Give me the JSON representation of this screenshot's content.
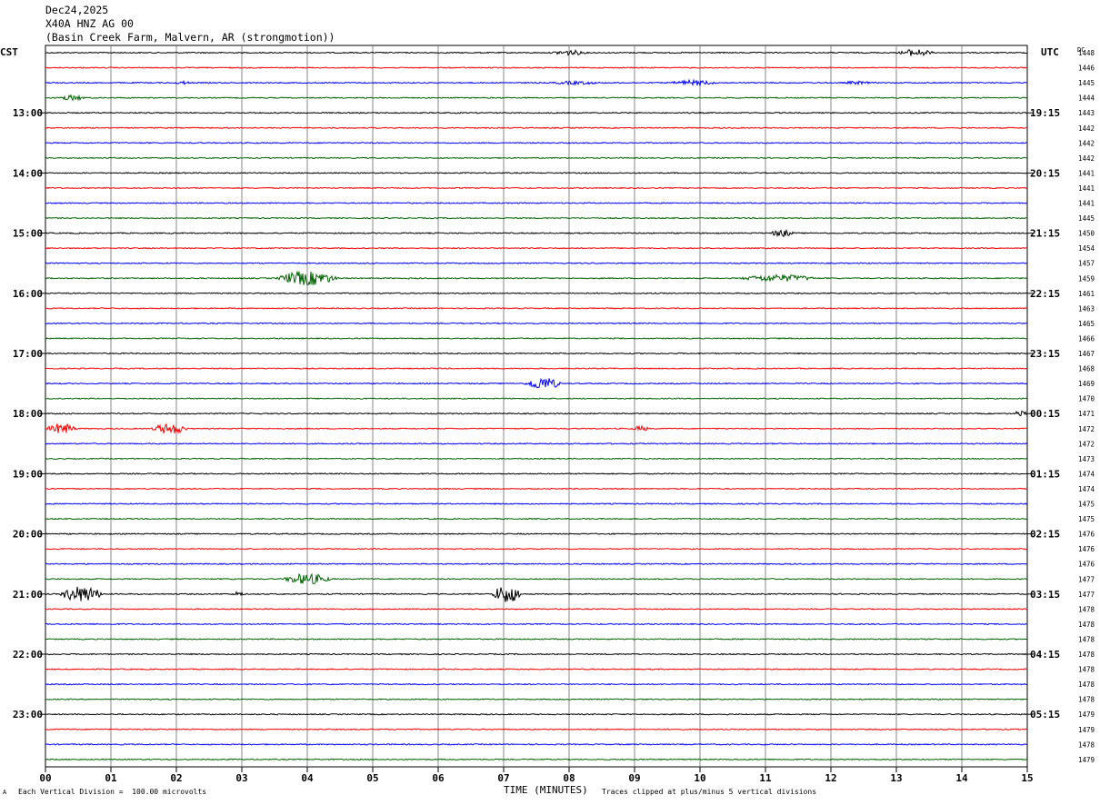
{
  "header": {
    "date": "Dec24,2025",
    "station": "X40A HNZ AG 00",
    "location": "(Basin Creek Farm, Malvern, AR (strongmotion))"
  },
  "footer": {
    "scale_note": "Each Vertical Division =  100.00 microvolts",
    "xlabel": "TIME (MINUTES)",
    "clip_note": "Traces clipped at plus/minus 5 vertical divisions",
    "corner_mark": "A"
  },
  "chart_data": {
    "type": "line",
    "title": "",
    "xlabel": "TIME (MINUTES)",
    "x_ticks": [
      "00",
      "01",
      "02",
      "03",
      "04",
      "05",
      "06",
      "07",
      "08",
      "09",
      "10",
      "11",
      "12",
      "13",
      "14",
      "15"
    ],
    "xlim": [
      0,
      15
    ],
    "left_axis_label": "CST",
    "right_axis_label": "UTC",
    "dc_label": "DC",
    "left_hour_labels": [
      "13:00",
      "14:00",
      "15:00",
      "16:00",
      "17:00",
      "18:00",
      "19:00",
      "20:00",
      "21:00",
      "22:00",
      "23:00"
    ],
    "right_hour_labels": [
      "19:15",
      "20:15",
      "21:15",
      "22:15",
      "23:15",
      "00:15",
      "01:15",
      "02:15",
      "03:15",
      "04:15",
      "05:15"
    ],
    "trace_colors": [
      "#000000",
      "#ff0000",
      "#0000ff",
      "#006400"
    ],
    "dc_values": [
      "1448",
      "1446",
      "1445",
      "1444",
      "1443",
      "1442",
      "1442",
      "1442",
      "1441",
      "1441",
      "1441",
      "1445",
      "1450",
      "1454",
      "1457",
      "1459",
      "1461",
      "1463",
      "1465",
      "1466",
      "1467",
      "1468",
      "1469",
      "1470",
      "1471",
      "1472",
      "1472",
      "1473",
      "1474",
      "1474",
      "1475",
      "1475",
      "1476",
      "1476",
      "1476",
      "1477",
      "1477",
      "1478",
      "1478",
      "1478",
      "1478",
      "1478",
      "1478",
      "1478",
      "1479",
      "1479",
      "1478",
      "1479"
    ],
    "events": [
      {
        "row": 0,
        "x": 8.0,
        "width": 0.6,
        "amp": 3
      },
      {
        "row": 0,
        "x": 13.3,
        "width": 0.6,
        "amp": 4
      },
      {
        "row": 2,
        "x": 2.1,
        "width": 0.3,
        "amp": 2
      },
      {
        "row": 2,
        "x": 8.1,
        "width": 0.9,
        "amp": 2
      },
      {
        "row": 2,
        "x": 9.9,
        "width": 0.8,
        "amp": 3
      },
      {
        "row": 2,
        "x": 12.4,
        "width": 0.5,
        "amp": 2
      },
      {
        "row": 3,
        "x": 0.4,
        "width": 0.5,
        "amp": 3
      },
      {
        "row": 12,
        "x": 11.25,
        "width": 0.4,
        "amp": 4
      },
      {
        "row": 15,
        "x": 4.0,
        "width": 1.0,
        "amp": 8
      },
      {
        "row": 15,
        "x": 11.2,
        "width": 1.3,
        "amp": 4
      },
      {
        "row": 22,
        "x": 7.6,
        "width": 0.6,
        "amp": 7
      },
      {
        "row": 25,
        "x": 0.25,
        "width": 0.5,
        "amp": 6
      },
      {
        "row": 25,
        "x": 1.9,
        "width": 0.6,
        "amp": 6
      },
      {
        "row": 25,
        "x": 9.1,
        "width": 0.3,
        "amp": 3
      },
      {
        "row": 24,
        "x": 14.9,
        "width": 0.2,
        "amp": 4
      },
      {
        "row": 35,
        "x": 4.0,
        "width": 0.8,
        "amp": 6
      },
      {
        "row": 36,
        "x": 0.55,
        "width": 0.7,
        "amp": 9
      },
      {
        "row": 36,
        "x": 7.05,
        "width": 0.5,
        "amp": 10
      },
      {
        "row": 36,
        "x": 2.95,
        "width": 0.2,
        "amp": 3
      }
    ]
  }
}
